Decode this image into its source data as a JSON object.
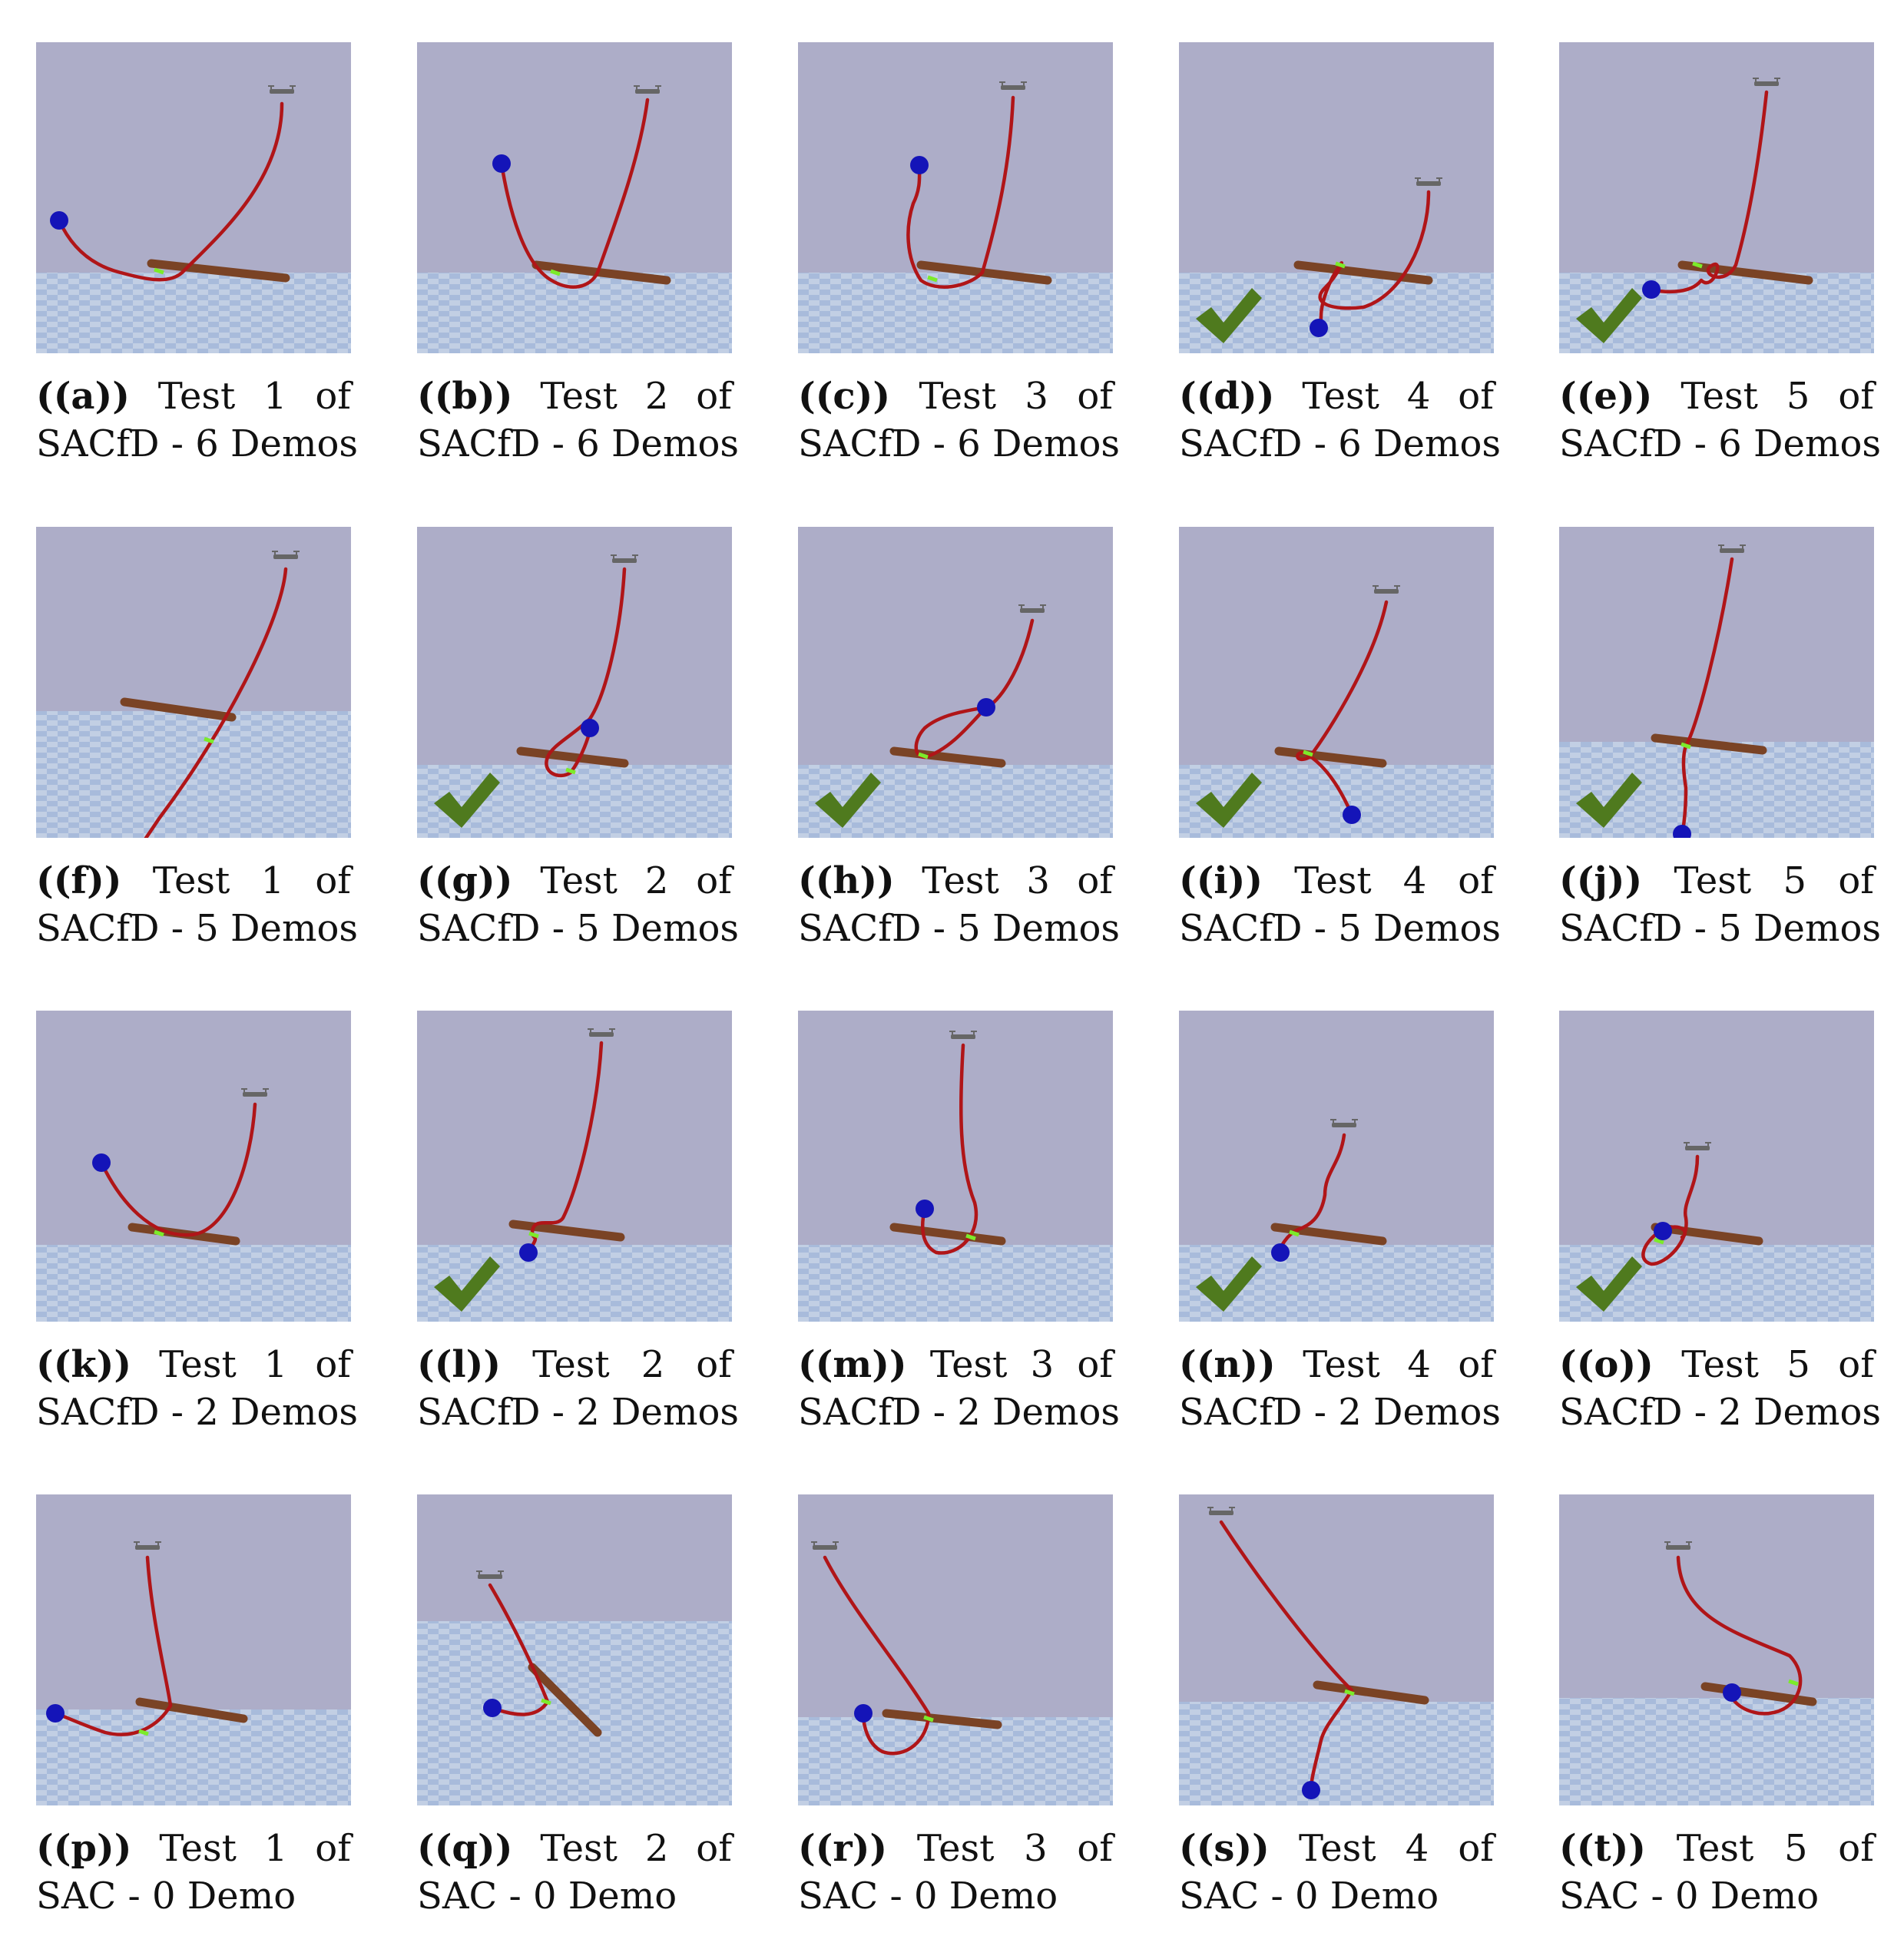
{
  "colors": {
    "sky": "#ADADC8",
    "floor_a": "#C2CFE4",
    "floor_b": "#A8BBDB",
    "trajectory": "#B01518",
    "rod": "#7A4325",
    "goal": "#1414B8",
    "contact": "#7CEB2A",
    "check": "#4F7A1E",
    "drone": "#666666"
  },
  "panels": [
    {
      "label": "((a))",
      "word": "Test",
      "num": "1",
      "of": "of",
      "method": "SACfD - 6 Demos",
      "success": false
    },
    {
      "label": "((b))",
      "word": "Test",
      "num": "2",
      "of": "of",
      "method": "SACfD - 6 Demos",
      "success": false
    },
    {
      "label": "((c))",
      "word": "Test",
      "num": "3",
      "of": "of",
      "method": "SACfD - 6 Demos",
      "success": false
    },
    {
      "label": "((d))",
      "word": "Test",
      "num": "4",
      "of": "of",
      "method": "SACfD - 6 Demos",
      "success": true
    },
    {
      "label": "((e))",
      "word": "Test",
      "num": "5",
      "of": "of",
      "method": "SACfD - 6 Demos",
      "success": true
    },
    {
      "label": "((f))",
      "word": "Test",
      "num": "1",
      "of": "of",
      "method": "SACfD - 5 Demos",
      "success": false
    },
    {
      "label": "((g))",
      "word": "Test",
      "num": "2",
      "of": "of",
      "method": "SACfD - 5 Demos",
      "success": true
    },
    {
      "label": "((h))",
      "word": "Test",
      "num": "3",
      "of": "of",
      "method": "SACfD - 5 Demos",
      "success": true
    },
    {
      "label": "((i))",
      "word": "Test",
      "num": "4",
      "of": "of",
      "method": "SACfD - 5 Demos",
      "success": true
    },
    {
      "label": "((j))",
      "word": "Test",
      "num": "5",
      "of": "of",
      "method": "SACfD - 5 Demos",
      "success": true
    },
    {
      "label": "((k))",
      "word": "Test",
      "num": "1",
      "of": "of",
      "method": "SACfD - 2 Demos",
      "success": false
    },
    {
      "label": "((l))",
      "word": "Test",
      "num": "2",
      "of": "of",
      "method": "SACfD - 2 Demos",
      "success": true
    },
    {
      "label": "((m))",
      "word": "Test",
      "num": "3",
      "of": "of",
      "method": "SACfD - 2 Demos",
      "success": false
    },
    {
      "label": "((n))",
      "word": "Test",
      "num": "4",
      "of": "of",
      "method": "SACfD - 2 Demos",
      "success": true
    },
    {
      "label": "((o))",
      "word": "Test",
      "num": "5",
      "of": "of",
      "method": "SACfD - 2 Demos",
      "success": true
    },
    {
      "label": "((p))",
      "word": "Test",
      "num": "1",
      "of": "of",
      "method": "SAC - 0 Demo",
      "success": false
    },
    {
      "label": "((q))",
      "word": "Test",
      "num": "2",
      "of": "of",
      "method": "SAC - 0 Demo",
      "success": false
    },
    {
      "label": "((r))",
      "word": "Test",
      "num": "3",
      "of": "of",
      "method": "SAC - 0 Demo",
      "success": false
    },
    {
      "label": "((s))",
      "word": "Test",
      "num": "4",
      "of": "of",
      "method": "SAC - 0 Demo",
      "success": false
    },
    {
      "label": "((t))",
      "word": "Test",
      "num": "5",
      "of": "of",
      "method": "SAC - 0 Demo",
      "success": false
    }
  ]
}
